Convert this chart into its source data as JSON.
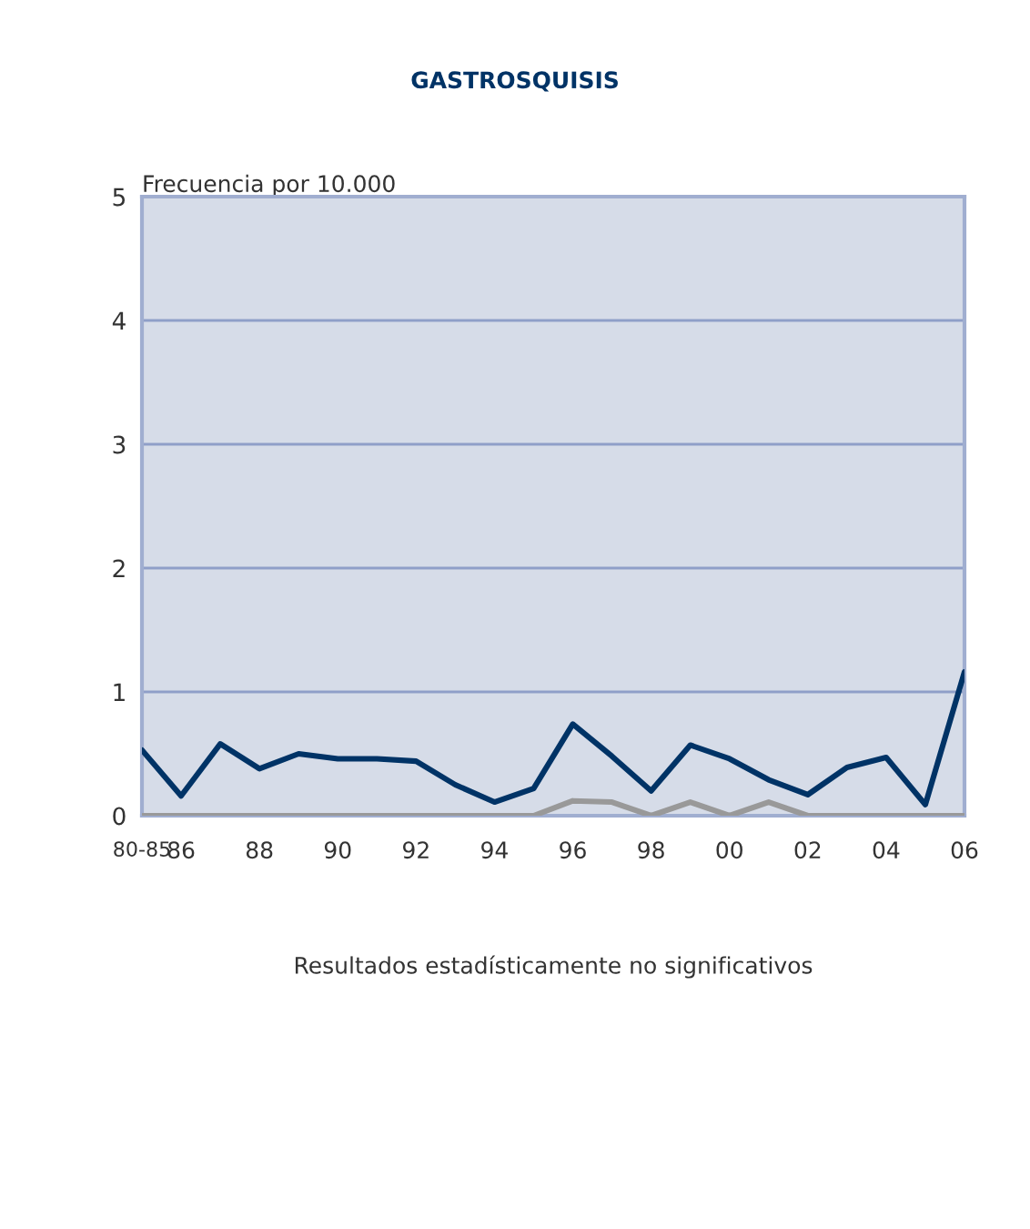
{
  "chart_data": {
    "type": "line",
    "title": "GASTROSQUISIS",
    "ylabel": "Frecuencia por 10.000",
    "categories": [
      "80-85",
      "86",
      null,
      "88",
      null,
      "90",
      null,
      "92",
      null,
      "94",
      null,
      "96",
      null,
      "98",
      null,
      "00",
      null,
      "02",
      null,
      "04",
      null,
      "06"
    ],
    "series": [
      {
        "color": "#003366",
        "values": [
          0.53,
          0.16,
          0.58,
          0.38,
          0.5,
          0.46,
          0.46,
          0.44,
          0.25,
          0.11,
          0.22,
          0.74,
          0.48,
          0.2,
          0.57,
          0.46,
          0.29,
          0.17,
          0.39,
          0.47,
          0.09,
          1.16
        ]
      },
      {
        "color": "#999999",
        "values": [
          0,
          0,
          0,
          0,
          0,
          0,
          0,
          0,
          0,
          0,
          0,
          0.12,
          0.11,
          0,
          0.11,
          0,
          0.11,
          0,
          0,
          0,
          0,
          0
        ]
      }
    ],
    "ylim": [
      0,
      5
    ],
    "yticks": [
      0,
      1,
      2,
      3,
      4,
      5
    ],
    "grid": "y",
    "legend": false,
    "marker": "none",
    "line_style": "solid",
    "annotations": [
      "Resultados estadísticamente no significativos"
    ]
  }
}
